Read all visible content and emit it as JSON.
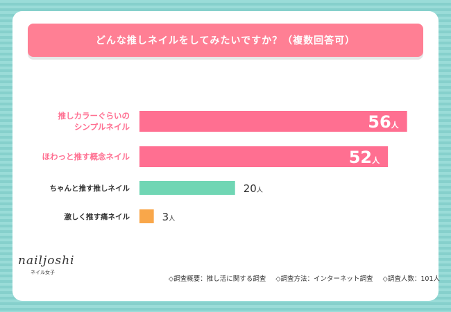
{
  "title": "どんな推しネイルをしてみたいですか？（複数回答可）",
  "colors": {
    "pink": "#ff6f91",
    "pink_label": "#ff6f91",
    "green": "#70d6b4",
    "orange": "#f9a74a",
    "title_bg": "#ff7f94"
  },
  "chart_data": {
    "type": "bar",
    "orientation": "horizontal",
    "categories": [
      [
        "推しカラーぐらいの",
        "シンプルネイル"
      ],
      [
        "ほわっと推す概念ネイル"
      ],
      [
        "ちゃんと推す推しネイル"
      ],
      [
        "激しく推す痛ネイル"
      ]
    ],
    "values": [
      56,
      52,
      20,
      3
    ],
    "unit": "人",
    "xlim": [
      0,
      62
    ],
    "bar_colors": [
      "#ff6f91",
      "#ff6f91",
      "#70d6b4",
      "#f9a74a"
    ],
    "label_inside": [
      true,
      true,
      false,
      false
    ]
  },
  "logo": {
    "main": "nailjoshi",
    "sub": "ネイル女子"
  },
  "footer": {
    "overview": "◇調査概要：推し活に関する調査",
    "method": "◇調査方法：インターネット調査",
    "count": "◇調査人数：101人"
  }
}
